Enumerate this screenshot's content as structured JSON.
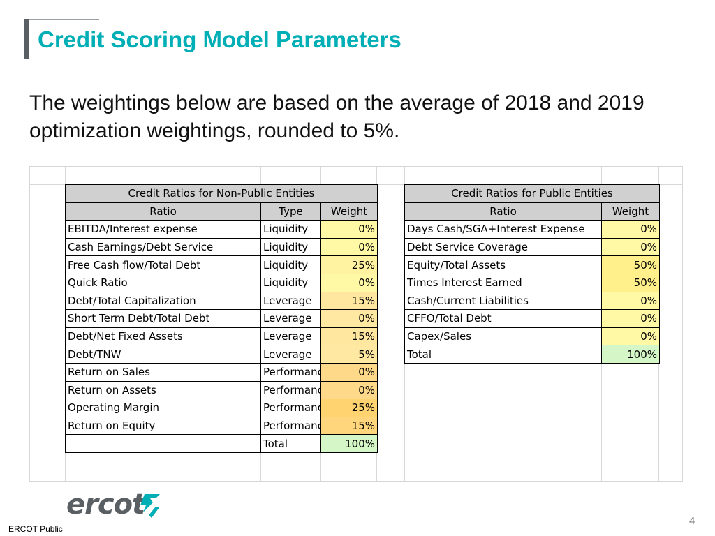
{
  "slide": {
    "title": "Credit Scoring Model Parameters",
    "subtitle": "The weightings below are based on the average of 2018 and 2019 optimization weightings, rounded to 5%.",
    "footer_label": "ERCOT Public",
    "page_number": "4",
    "logo_text": "ercot"
  },
  "non_public": {
    "heading": "Credit Ratios for Non-Public Entities",
    "col_ratio": "Ratio",
    "col_type": "Type",
    "col_weight": "Weight",
    "rows": [
      {
        "ratio": "EBITDA/Interest expense",
        "type": "Liquidity",
        "weight": "0%",
        "color": "#fff9a6"
      },
      {
        "ratio": "Cash Earnings/Debt Service",
        "type": "Liquidity",
        "weight": "0%",
        "color": "#fff9a6"
      },
      {
        "ratio": "Free Cash flow/Total Debt",
        "type": "Liquidity",
        "weight": "25%",
        "color": "#fff2a0"
      },
      {
        "ratio": "Quick Ratio",
        "type": "Liquidity",
        "weight": "0%",
        "color": "#fff9a6"
      },
      {
        "ratio": "Debt/Total Capitalization",
        "type": "Leverage",
        "weight": "15%",
        "color": "#ffe7a0"
      },
      {
        "ratio": "Short Term Debt/Total Debt",
        "type": "Leverage",
        "weight": "0%",
        "color": "#ffe9a2"
      },
      {
        "ratio": "Debt/Net Fixed Assets",
        "type": "Leverage",
        "weight": "15%",
        "color": "#ffe7a0"
      },
      {
        "ratio": "Debt/TNW",
        "type": "Leverage",
        "weight": "5%",
        "color": "#ffe9a2"
      },
      {
        "ratio": "Return on Sales",
        "type": "Performance",
        "weight": "0%",
        "color": "#ffd98a"
      },
      {
        "ratio": "Return on Assets",
        "type": "Performance",
        "weight": "0%",
        "color": "#ffd98a"
      },
      {
        "ratio": "Operating Margin",
        "type": "Performance",
        "weight": "25%",
        "color": "#ffd470"
      },
      {
        "ratio": "Return on Equity",
        "type": "Performance",
        "weight": "15%",
        "color": "#ffd67c"
      }
    ],
    "total_label": "Total",
    "total_weight": "100%",
    "total_color": "#d5f7c8"
  },
  "public": {
    "heading": "Credit Ratios for Public Entities",
    "col_ratio": "Ratio",
    "col_weight": "Weight",
    "rows": [
      {
        "ratio": "Days Cash/SGA+Interest Expense",
        "weight": "0%",
        "color": "#fff9a6"
      },
      {
        "ratio": "Debt Service Coverage",
        "weight": "0%",
        "color": "#fff9a6"
      },
      {
        "ratio": "Equity/Total Assets",
        "weight": "50%",
        "color": "#fff08c"
      },
      {
        "ratio": "Times Interest Earned",
        "weight": "50%",
        "color": "#fff08c"
      },
      {
        "ratio": "Cash/Current Liabilities",
        "weight": "0%",
        "color": "#fff9a6"
      },
      {
        "ratio": "CFFO/Total Debt",
        "weight": "0%",
        "color": "#fff9a6"
      },
      {
        "ratio": "Capex/Sales",
        "weight": "0%",
        "color": "#fff9a6"
      }
    ],
    "total_label": "Total",
    "total_weight": "100%",
    "total_color": "#d5f7c8"
  }
}
